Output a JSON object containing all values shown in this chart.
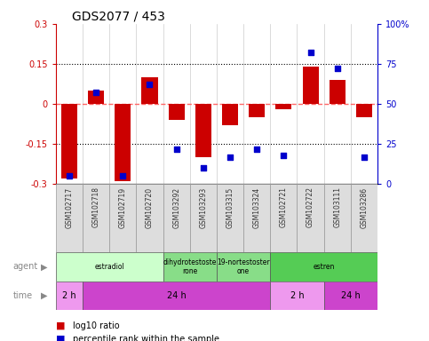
{
  "title": "GDS2077 / 453",
  "samples": [
    "GSM102717",
    "GSM102718",
    "GSM102719",
    "GSM102720",
    "GSM103292",
    "GSM103293",
    "GSM103315",
    "GSM103324",
    "GSM102721",
    "GSM102722",
    "GSM103111",
    "GSM103286"
  ],
  "log10_ratio": [
    -0.28,
    0.05,
    -0.29,
    0.1,
    -0.06,
    -0.2,
    -0.08,
    -0.05,
    -0.02,
    0.14,
    0.09,
    -0.05
  ],
  "percentile": [
    5,
    57,
    5,
    62,
    22,
    10,
    17,
    22,
    18,
    82,
    72,
    17
  ],
  "ylim": [
    -0.3,
    0.3
  ],
  "yticks_left": [
    -0.3,
    -0.15,
    0,
    0.15,
    0.3
  ],
  "yticks_right": [
    0,
    25,
    50,
    75,
    100
  ],
  "bar_color": "#cc0000",
  "dot_color": "#0000cc",
  "zero_line_color": "#ff6666",
  "dotted_line_color": "#000000",
  "agent_groups": [
    {
      "label": "estradiol",
      "start": 0,
      "end": 4,
      "color": "#ccffcc"
    },
    {
      "label": "dihydrotestoste\nrone",
      "start": 4,
      "end": 6,
      "color": "#88dd88"
    },
    {
      "label": "19-nortestoster\none",
      "start": 6,
      "end": 8,
      "color": "#88dd88"
    },
    {
      "label": "estren",
      "start": 8,
      "end": 12,
      "color": "#55cc55"
    }
  ],
  "time_groups": [
    {
      "label": "2 h",
      "start": 0,
      "end": 1,
      "color": "#ee99ee"
    },
    {
      "label": "24 h",
      "start": 1,
      "end": 8,
      "color": "#cc44cc"
    },
    {
      "label": "2 h",
      "start": 8,
      "end": 10,
      "color": "#ee99ee"
    },
    {
      "label": "24 h",
      "start": 10,
      "end": 12,
      "color": "#cc44cc"
    }
  ],
  "bg_color": "#ffffff",
  "sample_box_color": "#dddddd",
  "sample_text_color": "#333333"
}
